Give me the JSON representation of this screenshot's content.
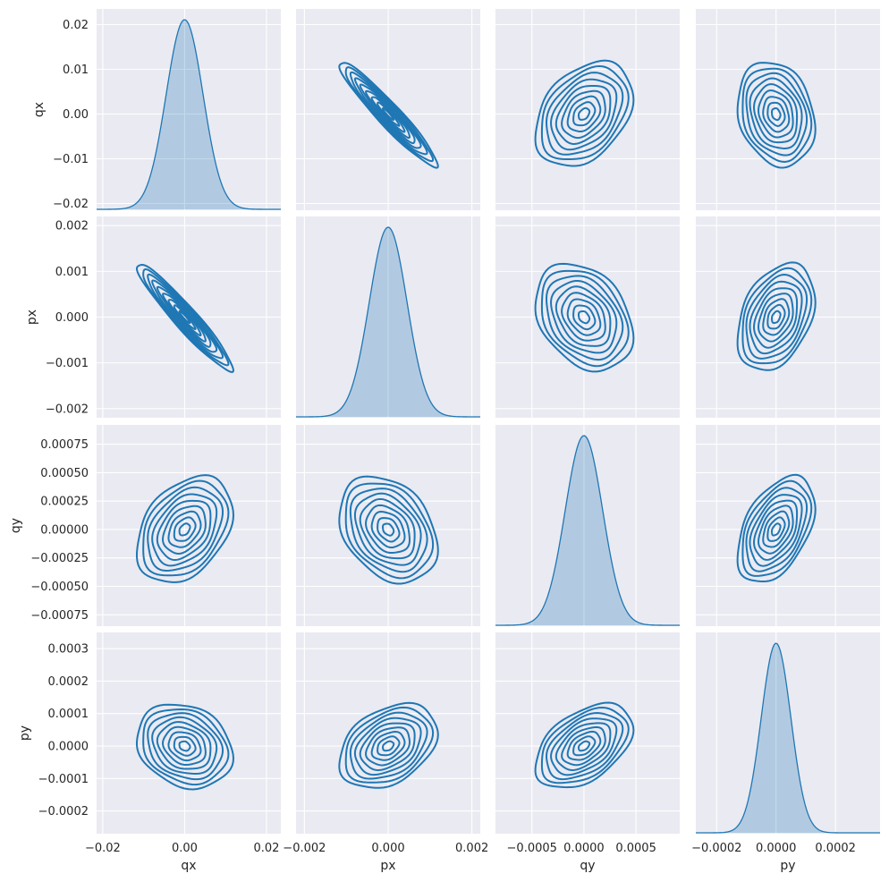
{
  "chart_data": {
    "type": "pairplot",
    "kind": "kde",
    "diagonal": "kde",
    "variables": [
      "qx",
      "px",
      "qy",
      "py"
    ],
    "grid": true,
    "background": "#eaeaf2",
    "color": "#1f77b4",
    "axes": {
      "qx": {
        "label": "qx",
        "range": [
          -0.0215,
          0.0235
        ],
        "ticks": [
          -0.02,
          -0.01,
          0.0,
          0.01,
          0.02
        ],
        "tick_labels": [
          "−0.02",
          "−0.01",
          "0.00",
          "0.01",
          "0.02"
        ],
        "x_ticks": [
          -0.02,
          0.0,
          0.02
        ],
        "x_tick_labels": [
          "−0.02",
          "0.00",
          "0.02"
        ],
        "std": 0.0045
      },
      "px": {
        "label": "px",
        "range": [
          -0.0022,
          0.0022
        ],
        "ticks": [
          -0.002,
          -0.001,
          0.0,
          0.001,
          0.002
        ],
        "tick_labels": [
          "−0.002",
          "−0.001",
          "0.000",
          "0.001",
          "0.002"
        ],
        "x_ticks": [
          -0.002,
          0.0,
          0.002
        ],
        "x_tick_labels": [
          "−0.002",
          "0.000",
          "0.002"
        ],
        "std": 0.00045
      },
      "qy": {
        "label": "qy",
        "range": [
          -0.00085,
          0.00092
        ],
        "ticks": [
          -0.00075,
          -0.0005,
          -0.00025,
          0.0,
          0.00025,
          0.0005,
          0.00075
        ],
        "tick_labels": [
          "−0.00075",
          "−0.00050",
          "−0.00025",
          "0.00000",
          "0.00025",
          "0.00050",
          "0.00075"
        ],
        "x_ticks": [
          -0.0005,
          0.0,
          0.0005
        ],
        "x_tick_labels": [
          "−0.0005",
          "0.0000",
          "0.0005"
        ],
        "std": 0.00018
      },
      "py": {
        "label": "py",
        "range": [
          -0.00027,
          0.00035
        ],
        "ticks": [
          -0.0002,
          -0.0001,
          0.0,
          0.0001,
          0.0002,
          0.0003
        ],
        "tick_labels": [
          "−0.0002",
          "−0.0001",
          "0.0000",
          "0.0001",
          "0.0002",
          "0.0003"
        ],
        "x_ticks": [
          -0.0002,
          0.0,
          0.0002
        ],
        "x_tick_labels": [
          "−0.0002",
          "0.0000",
          "0.0002"
        ],
        "std": 5e-05
      }
    },
    "correlations": [
      [
        1.0,
        -0.95,
        0.35,
        -0.2
      ],
      [
        -0.95,
        1.0,
        -0.3,
        0.35
      ],
      [
        0.35,
        -0.3,
        1.0,
        0.45
      ],
      [
        -0.2,
        0.35,
        0.45,
        1.0
      ]
    ],
    "contour_levels": 9
  }
}
